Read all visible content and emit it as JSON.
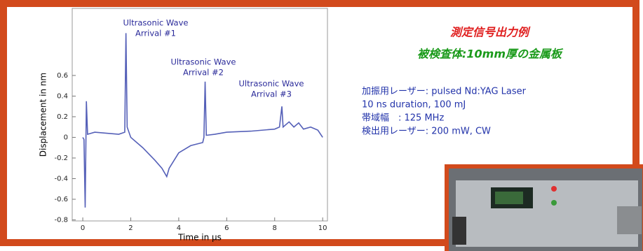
{
  "chart_data": {
    "type": "line",
    "x_label": "Time in μs",
    "y_label": "Displacement in nm",
    "x": [
      0,
      0.05,
      0.1,
      0.15,
      0.2,
      0.5,
      1,
      1.5,
      1.75,
      1.8,
      1.85,
      2,
      2.5,
      3,
      3.3,
      3.5,
      3.6,
      4,
      4.5,
      5,
      5.05,
      5.1,
      5.15,
      5.5,
      6,
      7,
      8,
      8.2,
      8.3,
      8.35,
      8.6,
      8.8,
      9,
      9.2,
      9.5,
      9.8,
      10
    ],
    "series": [
      {
        "color": "#5560b8",
        "values": [
          0,
          -0.02,
          -0.68,
          0.35,
          0.03,
          0.05,
          0.04,
          0.03,
          0.05,
          1.01,
          0.1,
          0.0,
          -0.1,
          -0.22,
          -0.3,
          -0.38,
          -0.3,
          -0.15,
          -0.08,
          -0.05,
          0.0,
          0.54,
          0.02,
          0.03,
          0.05,
          0.06,
          0.08,
          0.1,
          0.3,
          0.1,
          0.15,
          0.1,
          0.14,
          0.08,
          0.1,
          0.07,
          0.0
        ]
      }
    ],
    "xlim": [
      -0.44,
      10.2
    ],
    "xticks": [
      0,
      2,
      4,
      6,
      8,
      10
    ],
    "ylim": [
      -0.81,
      1.25
    ],
    "yticks": [
      -0.8,
      -0.6,
      -0.4,
      -0.2,
      0,
      0.2,
      0.4,
      0.6
    ],
    "grid": false,
    "annotations": [
      [
        "Ultrasonic Wave",
        "Arrival #1"
      ],
      [
        "Ultrasonic Wave",
        "Arrival #2"
      ],
      [
        "Ultrasonic Wave",
        "Arrival #3"
      ]
    ]
  },
  "header": {
    "title": "測定信号出力例",
    "subtitle": "被検査体:10mm厚の金属板"
  },
  "specs": [
    "加振用レーザー: pulsed Nd:YAG Laser",
    "10 ns duration, 100 mJ",
    "帯域幅　: 125 MHz",
    "検出用レーザー: 200 mW, CW"
  ]
}
